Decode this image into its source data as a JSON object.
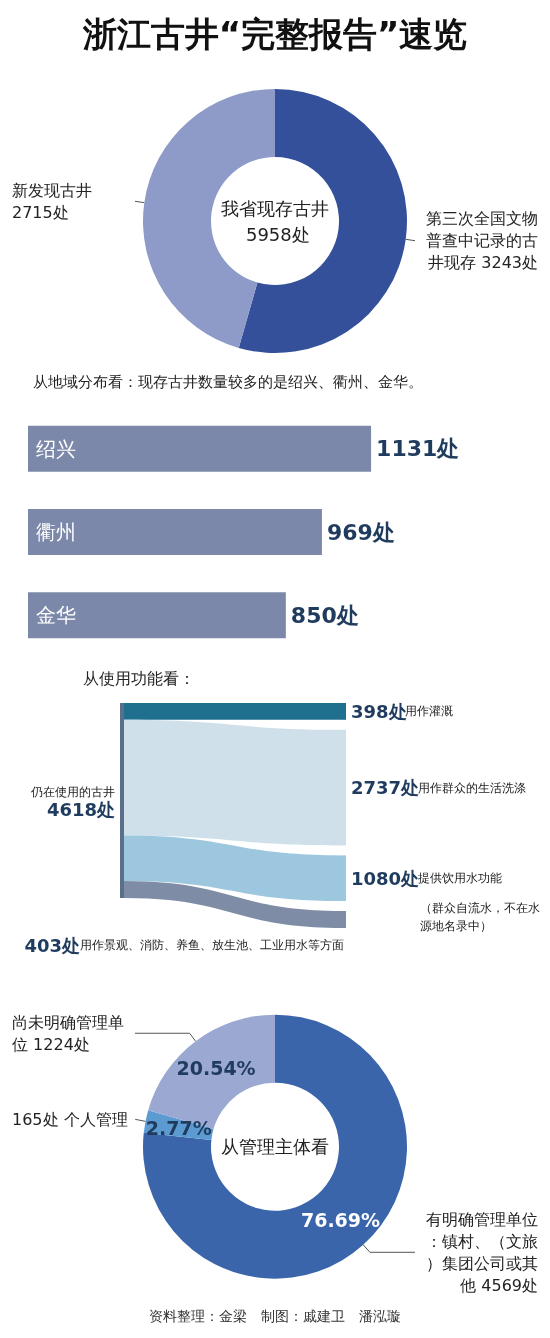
{
  "chart_data": [
    {
      "type": "donut",
      "title": "浙江古井“完整报告”速览",
      "categories": [
        "第三次全国文物普查中记录的古井现存 3243处",
        "新发现古井 2715处"
      ],
      "values": [
        3243,
        2715
      ],
      "colors": [
        "#34509a",
        "#8e9bc9"
      ],
      "annotations": [
        "我省现存古井 5958处"
      ],
      "legend": false
    },
    {
      "type": "bar",
      "orientation": "horizontal",
      "title": "从地域分布看：现存古井数量较多的是绍兴、衢州、金华。",
      "categories": [
        "绍兴",
        "衢州",
        "金华"
      ],
      "values": [
        1131,
        969,
        850
      ],
      "value_labels": [
        "1131处",
        "969处",
        "850处"
      ],
      "color": "#7b88a9",
      "legend": false
    },
    {
      "type": "other",
      "title": "从使用功能看：",
      "categories": [
        "仍在使用的古井",
        "用作灌溉",
        "用作群众的生活洗涤",
        "提供饮用水功能",
        "用作景观、消防、养鱼、放生池、工业用水等方面"
      ],
      "values": [
        4618,
        398,
        2737,
        1080,
        403
      ],
      "value_labels": [
        "4618处",
        "398处",
        "2737处",
        "1080处",
        "403处"
      ],
      "colors": [
        "#5a6f8c",
        "#1f6f8f",
        "#cfe0ea",
        "#9cc7de",
        "#7f8ca6"
      ],
      "annotations": [
        "（群众自流水，不在水源地名录中）"
      ]
    },
    {
      "type": "donut",
      "categories": [
        "有明确管理单位：镇村、（文旅）集团公司或其他 4569处",
        "165处 个人管理",
        "尚未明确管理单位 1224处"
      ],
      "values": [
        76.69,
        2.77,
        20.54
      ],
      "value_labels": [
        "76.69%",
        "2.77%",
        "20.54%"
      ],
      "colors": [
        "#3a65ab",
        "#5b9bd1",
        "#9aa8d2"
      ],
      "annotations": [
        "从管理主体看",
        "资料整理：金梁　制图：戚建卫　潘泓璇"
      ],
      "legend": false
    }
  ]
}
